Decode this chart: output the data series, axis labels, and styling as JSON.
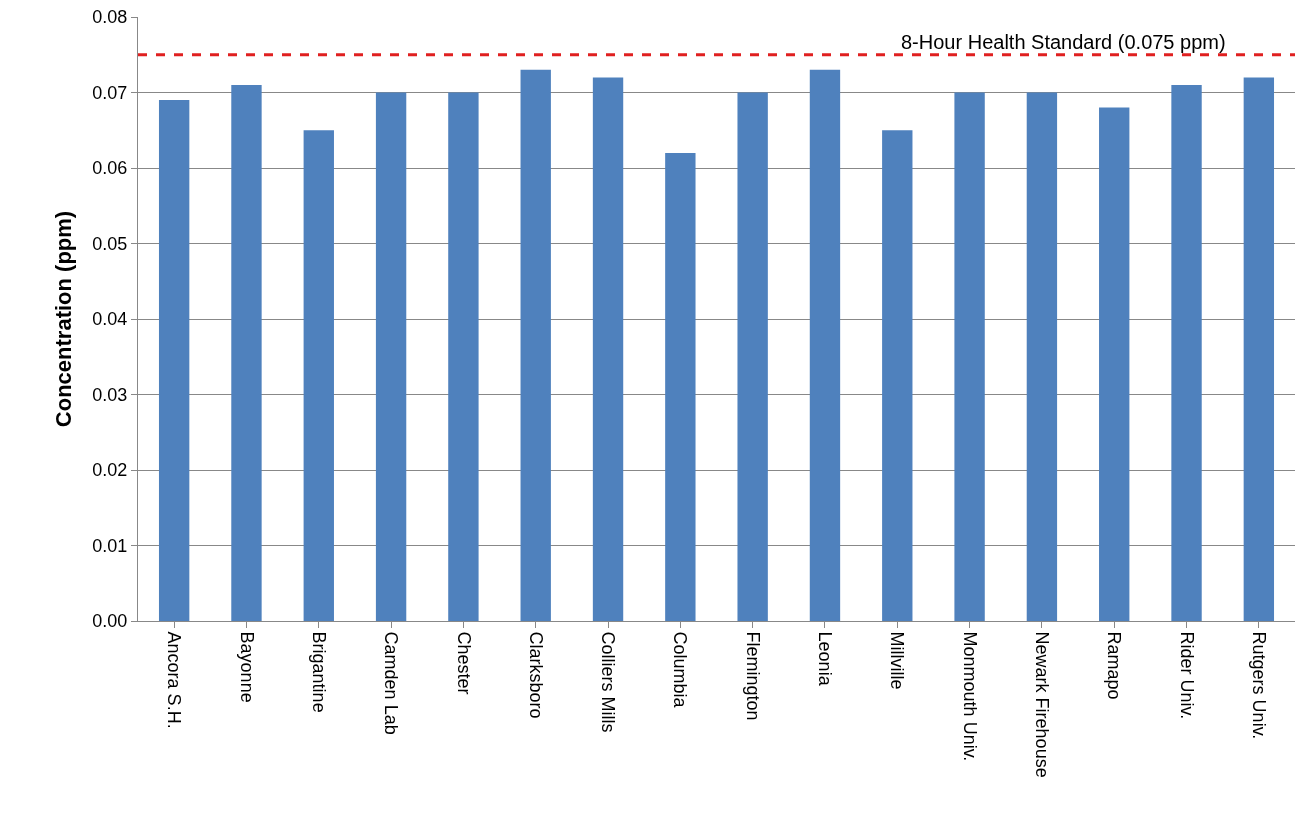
{
  "chart_data": {
    "type": "bar",
    "categories": [
      "Ancora S.H.",
      "Bayonne",
      "Brigantine",
      "Camden Lab",
      "Chester",
      "Clarksboro",
      "Colliers Mills",
      "Columbia",
      "Flemington",
      "Leonia",
      "Millville",
      "Monmouth Univ.",
      "Newark Firehouse",
      "Ramapo",
      "Rider Univ.",
      "Rutgers Univ."
    ],
    "values": [
      0.069,
      0.071,
      0.065,
      0.07,
      0.07,
      0.073,
      0.072,
      0.062,
      0.07,
      0.073,
      0.065,
      0.07,
      0.07,
      0.068,
      0.071,
      0.072
    ],
    "color": "#4f81bd",
    "ylabel": "Concentration (ppm)",
    "ylim": [
      0,
      0.08
    ],
    "yticks": [
      {
        "value": 0,
        "label": "0.00"
      },
      {
        "value": 0.01,
        "label": "0.01"
      },
      {
        "value": 0.02,
        "label": "0.02"
      },
      {
        "value": 0.03,
        "label": "0.03"
      },
      {
        "value": 0.04,
        "label": "0.04"
      },
      {
        "value": 0.05,
        "label": "0.05"
      },
      {
        "value": 0.06,
        "label": "0.06"
      },
      {
        "value": 0.07,
        "label": "0.07"
      },
      {
        "value": 0.08,
        "label": "0.08"
      }
    ],
    "grid": "y",
    "ref_lines": [
      {
        "axis": "y",
        "value": 0.075,
        "label": "8-Hour Health Standard (0.075 ppm)",
        "color": "#e02020",
        "line_style": "dashed"
      }
    ]
  }
}
